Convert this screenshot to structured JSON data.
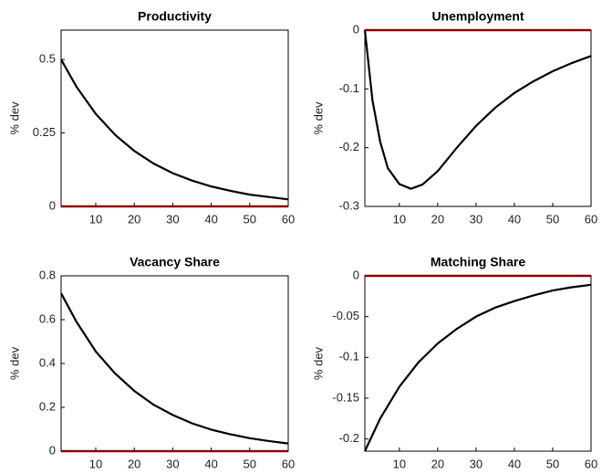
{
  "chart_data": [
    {
      "type": "line",
      "title": "Productivity",
      "ylabel": "% dev",
      "x": [
        1,
        5,
        10,
        15,
        20,
        25,
        30,
        35,
        40,
        45,
        50,
        55,
        60
      ],
      "series": [
        {
          "color": "#000000",
          "values": [
            0.5,
            0.407,
            0.315,
            0.244,
            0.189,
            0.146,
            0.113,
            0.088,
            0.068,
            0.053,
            0.04,
            0.032,
            0.024
          ]
        }
      ],
      "hline": {
        "y": 0,
        "color": "#ff0000"
      },
      "xlim": [
        1,
        60
      ],
      "xticks": [
        10,
        20,
        30,
        40,
        50,
        60
      ],
      "ylim": [
        0,
        0.6
      ],
      "yticks": [
        0,
        0.25,
        0.5
      ]
    },
    {
      "type": "line",
      "title": "Unemployment",
      "ylabel": "% dev",
      "x": [
        1,
        3,
        5,
        7,
        10,
        13,
        16,
        20,
        25,
        30,
        35,
        40,
        45,
        50,
        55,
        60
      ],
      "series": [
        {
          "color": "#000000",
          "values": [
            0,
            -0.12,
            -0.19,
            -0.235,
            -0.262,
            -0.27,
            -0.263,
            -0.24,
            -0.2,
            -0.163,
            -0.132,
            -0.107,
            -0.087,
            -0.07,
            -0.056,
            -0.044
          ]
        }
      ],
      "hline": {
        "y": 0,
        "color": "#ff0000"
      },
      "xlim": [
        1,
        60
      ],
      "xticks": [
        10,
        20,
        30,
        40,
        50,
        60
      ],
      "ylim": [
        -0.3,
        0
      ],
      "yticks": [
        -0.3,
        -0.2,
        -0.1,
        0
      ]
    },
    {
      "type": "line",
      "title": "Vacancy Share",
      "ylabel": "% dev",
      "x": [
        1,
        5,
        10,
        15,
        20,
        25,
        30,
        35,
        40,
        45,
        50,
        55,
        60
      ],
      "series": [
        {
          "color": "#000000",
          "values": [
            0.72,
            0.59,
            0.455,
            0.355,
            0.275,
            0.212,
            0.165,
            0.127,
            0.098,
            0.077,
            0.059,
            0.046,
            0.035
          ]
        }
      ],
      "hline": {
        "y": 0,
        "color": "#ff0000"
      },
      "xlim": [
        1,
        60
      ],
      "xticks": [
        10,
        20,
        30,
        40,
        50,
        60
      ],
      "ylim": [
        0,
        0.8
      ],
      "yticks": [
        0,
        0.2,
        0.4,
        0.6,
        0.8
      ]
    },
    {
      "type": "line",
      "title": "Matching Share",
      "ylabel": "% dev",
      "x": [
        1,
        5,
        10,
        15,
        20,
        25,
        30,
        35,
        40,
        45,
        50,
        55,
        60
      ],
      "series": [
        {
          "color": "#000000",
          "values": [
            -0.215,
            -0.175,
            -0.136,
            -0.106,
            -0.083,
            -0.065,
            -0.05,
            -0.039,
            -0.031,
            -0.024,
            -0.018,
            -0.014,
            -0.011
          ]
        }
      ],
      "hline": {
        "y": 0,
        "color": "#ff0000"
      },
      "xlim": [
        1,
        60
      ],
      "xticks": [
        10,
        20,
        30,
        40,
        50,
        60
      ],
      "ylim": [
        -0.215,
        0
      ],
      "yticks": [
        -0.2,
        -0.15,
        -0.1,
        -0.05,
        0
      ]
    }
  ]
}
